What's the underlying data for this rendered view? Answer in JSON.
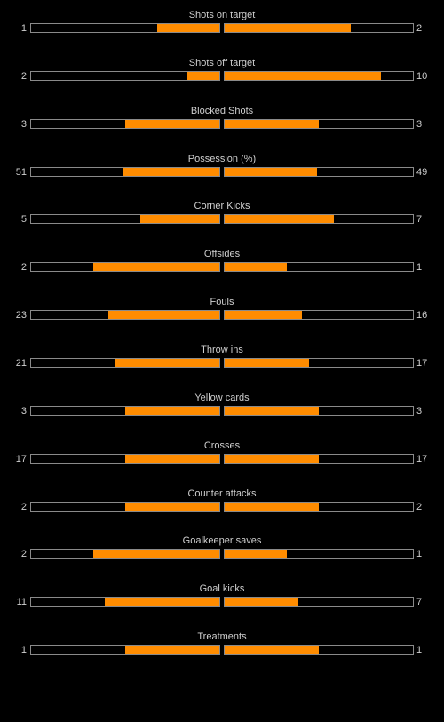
{
  "colors": {
    "background": "#000000",
    "bar_fill": "#ff8c00",
    "bar_border": "#8a8a8a",
    "text": "#cfcfcf"
  },
  "chart_data": {
    "type": "bar",
    "orientation": "horizontal-butterfly",
    "categories": [
      "Shots on target",
      "Shots off target",
      "Blocked Shots",
      "Possession (%)",
      "Corner Kicks",
      "Offsides",
      "Fouls",
      "Throw ins",
      "Yellow cards",
      "Crosses",
      "Counter attacks",
      "Goalkeeper saves",
      "Goal kicks",
      "Treatments"
    ],
    "series": [
      {
        "values": [
          1,
          2,
          3,
          51,
          5,
          2,
          23,
          21,
          3,
          17,
          2,
          2,
          11,
          1
        ]
      },
      {
        "values": [
          2,
          10,
          3,
          49,
          7,
          1,
          16,
          17,
          3,
          17,
          2,
          1,
          7,
          1
        ]
      }
    ],
    "left_bar_fraction": [
      0.33,
      0.17,
      0.5,
      0.51,
      0.42,
      0.67,
      0.59,
      0.55,
      0.5,
      0.5,
      0.5,
      0.67,
      0.61,
      0.5
    ],
    "right_bar_fraction": [
      0.67,
      0.83,
      0.5,
      0.49,
      0.58,
      0.33,
      0.41,
      0.45,
      0.5,
      0.5,
      0.5,
      0.33,
      0.39,
      0.5
    ],
    "grid": false,
    "legend": "none"
  }
}
